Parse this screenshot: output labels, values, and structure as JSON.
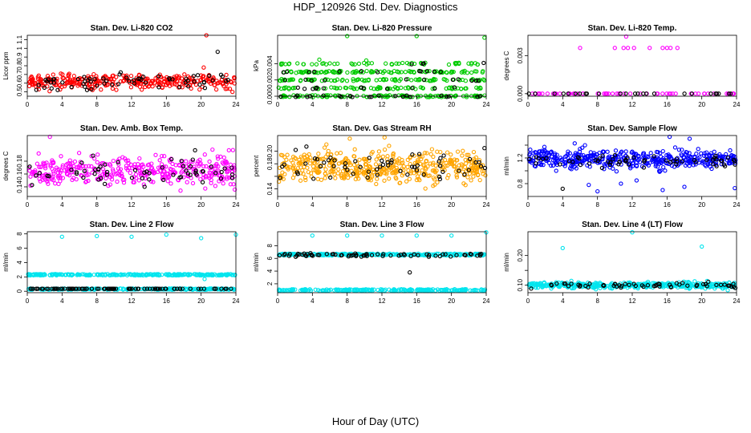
{
  "header": {
    "title": "HDP_120926  Std. Dev. Diagnostics"
  },
  "footer": {
    "xlabel": "Hour of Day (UTC)"
  },
  "chart_data": [
    {
      "type": "scatter",
      "title": "Stan. Dev. Li-820 CO2",
      "ylabel": "Licor ppm",
      "xlim": [
        0,
        24
      ],
      "ylim": [
        0.45,
        1.15
      ],
      "xticks": [
        0,
        4,
        8,
        12,
        16,
        20,
        24
      ],
      "yticks": [
        0.5,
        0.6,
        0.7,
        0.8,
        0.9,
        1.0,
        1.1
      ],
      "ytick_labels": [
        "0.5",
        "0.6",
        "0.7",
        "0.8",
        "0.9",
        "1",
        "1.1"
      ],
      "colors": {
        "main": "#ff0000",
        "overlay": "#000000"
      },
      "series": [
        {
          "role": "main",
          "dist": {
            "kind": "band",
            "mean": 0.62,
            "sd": 0.045,
            "n": 330
          },
          "points": [
            [
              20.6,
              1.15
            ],
            [
              20.3,
              0.78
            ],
            [
              23.6,
              0.5
            ]
          ]
        },
        {
          "role": "overlay",
          "dist": {
            "kind": "band",
            "mean": 0.62,
            "sd": 0.045,
            "n": 65
          },
          "points": [
            [
              21.9,
              0.96
            ]
          ]
        }
      ]
    },
    {
      "type": "scatter",
      "title": "Stan. Dev. Li-820 Pressure",
      "ylabel": "kPa",
      "xlim": [
        0,
        24
      ],
      "ylim": [
        0,
        0.0075
      ],
      "xticks": [
        0,
        4,
        8,
        12,
        16,
        20,
        24
      ],
      "yticks": [
        0.0,
        0.002,
        0.004
      ],
      "ytick_labels": [
        "0.000",
        "0.002",
        "0.004"
      ],
      "colors": {
        "main": "#00cc00",
        "overlay": "#000000"
      },
      "series": [
        {
          "role": "main",
          "dist": {
            "kind": "levels",
            "levels": [
              0,
              0.001,
              0.002,
              0.003,
              0.004
            ],
            "weights": [
              0.25,
              0.2,
              0.2,
              0.2,
              0.15
            ],
            "jitter": 0.00012,
            "n": 420
          },
          "points": [
            [
              8,
              0.0074
            ],
            [
              16,
              0.0074
            ],
            [
              23.8,
              0.0072
            ],
            [
              4.8,
              0.0045
            ],
            [
              10.2,
              0.0044
            ]
          ]
        },
        {
          "role": "overlay",
          "dist": {
            "kind": "levels",
            "levels": [
              0,
              0.001,
              0.002,
              0.003,
              0.004
            ],
            "weights": [
              0.3,
              0.2,
              0.2,
              0.2,
              0.1
            ],
            "jitter": 0.0001,
            "n": 60
          },
          "points": [
            [
              23.7,
              0.0041
            ]
          ]
        }
      ]
    },
    {
      "type": "scatter",
      "title": "Stan. Dev. Li-820 Temp.",
      "ylabel": "degrees C",
      "xlim": [
        0,
        24
      ],
      "ylim": [
        -0.0002,
        0.0046
      ],
      "xticks": [
        0,
        4,
        8,
        12,
        16,
        20,
        24
      ],
      "yticks": [
        0.0,
        0.003
      ],
      "ytick_labels": [
        "0.000",
        "0.003"
      ],
      "colors": {
        "main": "#ff00ff",
        "overlay": "#000000"
      },
      "series": [
        {
          "role": "main",
          "dist": {
            "kind": "flat",
            "value": 0,
            "n": 60
          },
          "points": [
            [
              11.3,
              0.0045
            ],
            [
              6,
              0.0036
            ],
            [
              10,
              0.0036
            ],
            [
              11,
              0.0036
            ],
            [
              11.5,
              0.0036
            ],
            [
              12.2,
              0.0036
            ],
            [
              14,
              0.0036
            ],
            [
              15.5,
              0.0036
            ],
            [
              16,
              0.0036
            ],
            [
              16.4,
              0.0036
            ],
            [
              17.2,
              0.0036
            ]
          ]
        },
        {
          "role": "overlay",
          "dist": {
            "kind": "flat",
            "value": 0,
            "n": 25
          },
          "points": []
        }
      ]
    },
    {
      "type": "scatter",
      "title": "Stan. Dev. Amb. Box Temp.",
      "ylabel": "degrees C",
      "xlim": [
        0,
        24
      ],
      "ylim": [
        0.125,
        0.22
      ],
      "xticks": [
        0,
        4,
        8,
        12,
        16,
        20,
        24
      ],
      "yticks": [
        0.14,
        0.16,
        0.18
      ],
      "ytick_labels": [
        "0.14",
        "0.16",
        "0.18"
      ],
      "colors": {
        "main": "#ff00ff",
        "overlay": "#000000"
      },
      "series": [
        {
          "role": "main",
          "dist": {
            "kind": "band",
            "mean": 0.165,
            "sd": 0.011,
            "n": 380
          },
          "points": [
            [
              2.6,
              0.218
            ],
            [
              23.2,
              0.197
            ],
            [
              21.3,
              0.198
            ]
          ]
        },
        {
          "role": "overlay",
          "dist": {
            "kind": "band",
            "mean": 0.165,
            "sd": 0.011,
            "n": 60
          },
          "points": [
            [
              19.3,
              0.197
            ]
          ]
        }
      ]
    },
    {
      "type": "scatter",
      "title": "Stan. Dev. Gas Stream RH",
      "ylabel": "percent",
      "xlim": [
        0,
        24
      ],
      "ylim": [
        0.128,
        0.225
      ],
      "xticks": [
        0,
        4,
        8,
        12,
        16,
        20,
        24
      ],
      "yticks": [
        0.14,
        0.16,
        0.18,
        0.2
      ],
      "ytick_labels": [
        "0.14",
        "",
        "0.18",
        "0.20"
      ],
      "colors": {
        "main": "#ffa500",
        "overlay": "#000000"
      },
      "series": [
        {
          "role": "main",
          "dist": {
            "kind": "band",
            "mean": 0.175,
            "sd": 0.012,
            "n": 460
          },
          "points": [
            [
              12.3,
              0.222
            ],
            [
              8.3,
              0.22
            ]
          ]
        },
        {
          "role": "overlay",
          "dist": {
            "kind": "band",
            "mean": 0.175,
            "sd": 0.011,
            "n": 60
          },
          "points": [
            [
              23.8,
              0.205
            ]
          ]
        }
      ]
    },
    {
      "type": "scatter",
      "title": "Stan. Dev. Sample Flow",
      "ylabel": "ml/min",
      "xlim": [
        0,
        24
      ],
      "ylim": [
        0.6,
        1.55
      ],
      "xticks": [
        0,
        4,
        8,
        12,
        16,
        20,
        24
      ],
      "yticks": [
        0.8,
        1.0,
        1.2,
        1.4
      ],
      "ytick_labels": [
        "0.8",
        "",
        "1.2",
        ""
      ],
      "colors": {
        "main": "#0000ff",
        "overlay": "#000000"
      },
      "series": [
        {
          "role": "main",
          "dist": {
            "kind": "band",
            "mean": 1.18,
            "sd": 0.07,
            "n": 440
          },
          "points": [
            [
              8,
              0.68
            ],
            [
              7,
              0.78
            ],
            [
              10.7,
              0.8
            ],
            [
              15.5,
              0.7
            ],
            [
              18,
              0.75
            ],
            [
              23.8,
              0.73
            ],
            [
              12.5,
              0.85
            ],
            [
              16.3,
              1.53
            ],
            [
              18.6,
              1.5
            ]
          ]
        },
        {
          "role": "overlay",
          "dist": {
            "kind": "band",
            "mean": 1.16,
            "sd": 0.05,
            "n": 60
          },
          "points": [
            [
              4,
              0.72
            ]
          ]
        }
      ]
    },
    {
      "type": "scatter",
      "title": "Stan. Dev. Line 2 Flow",
      "ylabel": "ml/min",
      "xlim": [
        0,
        24
      ],
      "ylim": [
        -0.2,
        8.3
      ],
      "xticks": [
        0,
        4,
        8,
        12,
        16,
        20,
        24
      ],
      "yticks": [
        0,
        2,
        4,
        6,
        8
      ],
      "ytick_labels": [
        "0",
        "2",
        "4",
        "6",
        "8"
      ],
      "colors": {
        "main": "#00e5ee",
        "overlay": "#000000"
      },
      "series": [
        {
          "role": "main",
          "dist": {
            "kind": "levels",
            "levels": [
              2.3,
              0.3
            ],
            "weights": [
              0.55,
              0.45
            ],
            "jitter": 0.09,
            "n": 520
          },
          "points": [
            [
              4,
              7.6
            ],
            [
              8,
              7.7
            ],
            [
              12,
              7.6
            ],
            [
              16,
              7.9
            ],
            [
              20,
              7.4
            ],
            [
              24,
              7.9
            ],
            [
              20.4,
              1.7
            ]
          ]
        },
        {
          "role": "overlay",
          "dist": {
            "kind": "flat",
            "value": 0.35,
            "n": 90
          },
          "points": []
        }
      ]
    },
    {
      "type": "scatter",
      "title": "Stan. Dev. Line 3 Flow",
      "ylabel": "ml/min",
      "xlim": [
        0,
        24
      ],
      "ylim": [
        0.6,
        10.2
      ],
      "xticks": [
        0,
        4,
        8,
        12,
        16,
        20,
        24
      ],
      "yticks": [
        2,
        4,
        6,
        8
      ],
      "ytick_labels": [
        "2",
        "4",
        "6",
        "8"
      ],
      "colors": {
        "main": "#00e5ee",
        "overlay": "#000000"
      },
      "series": [
        {
          "role": "main",
          "dist": {
            "kind": "levels",
            "levels": [
              6.6,
              1.0
            ],
            "weights": [
              0.55,
              0.45
            ],
            "jitter": 0.14,
            "n": 500
          },
          "points": [
            [
              4,
              9.6
            ],
            [
              8,
              9.6
            ],
            [
              12,
              9.6
            ],
            [
              16,
              9.6
            ],
            [
              20,
              9.6
            ],
            [
              24,
              10.1
            ]
          ]
        },
        {
          "role": "overlay",
          "dist": {
            "kind": "band",
            "mean": 6.55,
            "sd": 0.15,
            "n": 70
          },
          "points": [
            [
              15.2,
              3.8
            ]
          ]
        }
      ]
    },
    {
      "type": "scatter",
      "title": "Stan. Dev. Line 4 (LT) Flow",
      "ylabel": "ml/min",
      "xlim": [
        0,
        24
      ],
      "ylim": [
        0.075,
        0.28
      ],
      "xticks": [
        0,
        4,
        8,
        12,
        16,
        20,
        24
      ],
      "yticks": [
        0.1,
        0.15,
        0.2
      ],
      "ytick_labels": [
        "0.10",
        "",
        "0.20"
      ],
      "colors": {
        "main": "#00e5ee",
        "overlay": "#000000"
      },
      "series": [
        {
          "role": "main",
          "dist": {
            "kind": "band",
            "mean": 0.1,
            "sd": 0.005,
            "n": 430
          },
          "points": [
            [
              4,
              0.225
            ],
            [
              12,
              0.278
            ],
            [
              20,
              0.23
            ]
          ]
        },
        {
          "role": "overlay",
          "dist": {
            "kind": "band",
            "mean": 0.1,
            "sd": 0.004,
            "n": 60
          },
          "points": []
        }
      ]
    }
  ]
}
